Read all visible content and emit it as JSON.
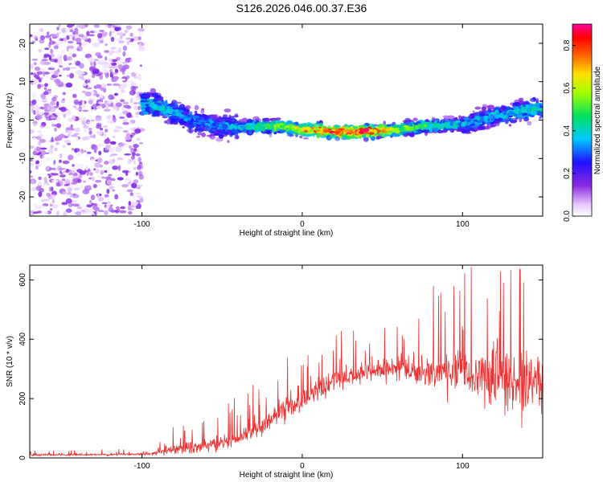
{
  "title": "S126.2026.046.00.37.E36",
  "chart_data": [
    {
      "type": "heatmap",
      "xlabel": "Height of straight line (km)",
      "ylabel": "Frequency (Hz)",
      "xlim": [
        -170,
        150
      ],
      "ylim": [
        -25,
        25
      ],
      "xticks": [
        -100,
        0,
        100
      ],
      "yticks": [
        -20,
        -10,
        0,
        10,
        20
      ],
      "colorbar": {
        "label": "Normalized spectral amplitude",
        "range": [
          0.0,
          0.9
        ],
        "ticks": [
          0.0,
          0.2,
          0.4,
          0.6,
          0.8
        ],
        "colormap": "rainbow (white, violet, blue, cyan, green, yellow, red, magenta)"
      },
      "ridge": {
        "x": [
          -95,
          -80,
          -70,
          -60,
          -40,
          -20,
          0,
          20,
          40,
          60,
          80,
          100,
          120,
          145
        ],
        "freq": [
          4,
          2,
          0,
          -1,
          -2,
          -1.5,
          -2.5,
          -3,
          -3,
          -2.5,
          -1.5,
          -1,
          1,
          3
        ],
        "peak_amplitude": [
          0.45,
          0.4,
          0.35,
          0.35,
          0.4,
          0.55,
          0.75,
          0.85,
          0.85,
          0.6,
          0.5,
          0.4,
          0.4,
          0.45
        ]
      },
      "noise_region": {
        "x": [
          -170,
          -100
        ],
        "freq": [
          -25,
          25
        ],
        "amplitude_range": [
          0.0,
          0.15
        ]
      }
    },
    {
      "type": "line",
      "xlabel": "Height of straight line (km)",
      "ylabel": "SNR (10 * v/v)",
      "xlim": [
        -170,
        150
      ],
      "ylim": [
        0,
        650
      ],
      "xticks": [
        -100,
        0,
        100
      ],
      "yticks": [
        0,
        200,
        400,
        600
      ],
      "color": "#f03030",
      "envelope": {
        "x": [
          -170,
          -95,
          -85,
          -60,
          -40,
          -20,
          0,
          20,
          40,
          60,
          80,
          100,
          120,
          150
        ],
        "mean": [
          10,
          12,
          25,
          40,
          60,
          130,
          200,
          260,
          290,
          300,
          290,
          280,
          260,
          250
        ],
        "spread": [
          8,
          8,
          35,
          50,
          60,
          90,
          100,
          80,
          60,
          90,
          140,
          180,
          220,
          230
        ]
      }
    }
  ]
}
